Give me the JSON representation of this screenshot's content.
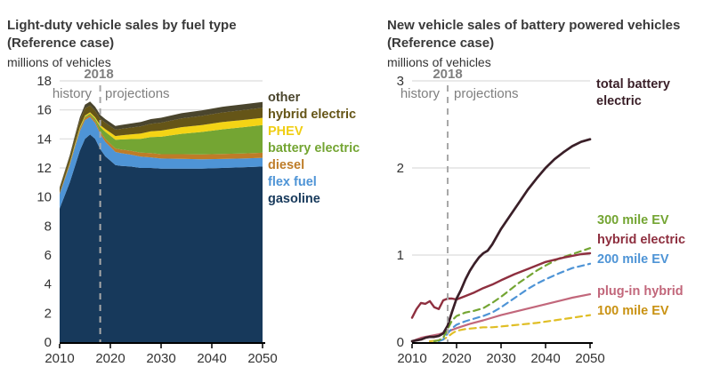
{
  "left_panel": {
    "title_line1": "Light-duty vehicle sales by fuel type",
    "title_line2": "(Reference case)",
    "unit_label": "millions of vehicles",
    "year_marker_label": "2018",
    "history_label": "history",
    "projections_label": "projections",
    "legend": [
      {
        "label": "other",
        "color": "#4A452D"
      },
      {
        "label": "hybrid electric",
        "color": "#655517"
      },
      {
        "label": "PHEV",
        "color": "#F0CE13"
      },
      {
        "label": "battery electric",
        "color": "#74A533"
      },
      {
        "label": "diesel",
        "color": "#BE7C28"
      },
      {
        "label": "flex fuel",
        "color": "#4E94D6"
      },
      {
        "label": "gasoline",
        "color": "#17395B"
      }
    ]
  },
  "right_panel": {
    "title_line1": "New vehicle sales of battery powered vehicles",
    "title_line2": "(Reference case)",
    "unit_label": "millions of vehicles",
    "year_marker_label": "2018",
    "history_label": "history",
    "projections_label": "projections",
    "total_label_line1": "total battery",
    "total_label_line2": "electric",
    "total_label_color": "#3A1F28",
    "legend": [
      {
        "label": "300 mile EV",
        "color": "#74A533"
      },
      {
        "label": "hybrid electric",
        "color": "#8E2F3F"
      },
      {
        "label": "200 mile EV",
        "color": "#4E94D6"
      },
      {
        "label": "plug-in hybrid",
        "color": "#C2677B"
      },
      {
        "label": "100 mile EV",
        "color": "#C99213"
      }
    ]
  },
  "chart_data": [
    {
      "id": "left",
      "type": "stacked-area",
      "title": "Light-duty vehicle sales by fuel type (Reference case)",
      "ylabel": "millions of vehicles",
      "xlim": [
        2010,
        2050
      ],
      "ylim": [
        0,
        18
      ],
      "xticks": [
        2010,
        2020,
        2030,
        2040,
        2050
      ],
      "yticks": [
        0,
        2,
        4,
        6,
        8,
        10,
        12,
        14,
        16,
        18
      ],
      "gridlines": [
        12,
        14,
        16,
        18
      ],
      "grid": true,
      "legend_position": "right",
      "marker_year": 2018,
      "years": [
        2010,
        2011,
        2012,
        2013,
        2014,
        2015,
        2016,
        2017,
        2018,
        2019,
        2020,
        2021,
        2022,
        2024,
        2026,
        2028,
        2030,
        2034,
        2038,
        2042,
        2046,
        2050
      ],
      "series": [
        {
          "name": "gasoline",
          "color": "#17395B",
          "values": [
            9.2,
            10.1,
            11.0,
            12.1,
            13.2,
            14.0,
            14.3,
            14.0,
            13.3,
            12.8,
            12.5,
            12.2,
            12.15,
            12.1,
            12.0,
            12.0,
            11.95,
            11.95,
            11.95,
            12.0,
            12.05,
            12.1
          ]
        },
        {
          "name": "flex fuel",
          "color": "#4E94D6",
          "values": [
            1.0,
            1.1,
            1.2,
            1.3,
            1.35,
            1.3,
            1.2,
            1.1,
            1.05,
            1.0,
            0.95,
            0.9,
            0.88,
            0.82,
            0.78,
            0.73,
            0.7,
            0.68,
            0.65,
            0.62,
            0.6,
            0.6
          ]
        },
        {
          "name": "diesel",
          "color": "#BE7C28",
          "values": [
            0.08,
            0.09,
            0.1,
            0.12,
            0.14,
            0.15,
            0.15,
            0.15,
            0.18,
            0.2,
            0.22,
            0.24,
            0.25,
            0.27,
            0.28,
            0.3,
            0.3,
            0.32,
            0.33,
            0.34,
            0.35,
            0.35
          ]
        },
        {
          "name": "battery electric",
          "color": "#74A533",
          "values": [
            0.0,
            0.01,
            0.02,
            0.04,
            0.06,
            0.08,
            0.1,
            0.15,
            0.3,
            0.5,
            0.55,
            0.6,
            0.68,
            0.8,
            0.95,
            1.1,
            1.2,
            1.4,
            1.55,
            1.7,
            1.8,
            1.9
          ]
        },
        {
          "name": "PHEV",
          "color": "#F4D415",
          "values": [
            0.0,
            0.02,
            0.04,
            0.06,
            0.07,
            0.08,
            0.08,
            0.09,
            0.12,
            0.18,
            0.22,
            0.26,
            0.28,
            0.32,
            0.36,
            0.4,
            0.42,
            0.46,
            0.48,
            0.5,
            0.5,
            0.5
          ]
        },
        {
          "name": "hybrid electric",
          "color": "#655517",
          "values": [
            0.3,
            0.35,
            0.4,
            0.45,
            0.48,
            0.5,
            0.47,
            0.45,
            0.45,
            0.44,
            0.44,
            0.44,
            0.45,
            0.47,
            0.5,
            0.52,
            0.55,
            0.6,
            0.63,
            0.66,
            0.68,
            0.7
          ]
        },
        {
          "name": "other",
          "color": "#4A452D",
          "values": [
            0.08,
            0.1,
            0.12,
            0.15,
            0.2,
            0.25,
            0.28,
            0.28,
            0.26,
            0.25,
            0.25,
            0.25,
            0.26,
            0.28,
            0.3,
            0.32,
            0.34,
            0.36,
            0.38,
            0.39,
            0.4,
            0.4
          ]
        }
      ]
    },
    {
      "id": "right",
      "type": "line",
      "title": "New vehicle sales of battery powered vehicles (Reference case)",
      "ylabel": "millions of vehicles",
      "xlim": [
        2010,
        2050
      ],
      "ylim": [
        0,
        3
      ],
      "xticks": [
        2010,
        2020,
        2030,
        2040,
        2050
      ],
      "yticks": [
        0,
        1,
        2,
        3
      ],
      "gridlines": [
        1,
        2,
        3
      ],
      "grid": true,
      "legend_position": "right",
      "marker_year": 2018,
      "series": [
        {
          "name": "100 mile EV",
          "color": "#E0BE25",
          "dash": "7,5",
          "width": 2.2,
          "x": [
            2014,
            2016,
            2017,
            2018,
            2019,
            2020,
            2022,
            2024,
            2026,
            2028,
            2030,
            2034,
            2038,
            2042,
            2046,
            2050
          ],
          "y": [
            0.01,
            0.02,
            0.03,
            0.06,
            0.1,
            0.13,
            0.15,
            0.16,
            0.17,
            0.17,
            0.18,
            0.2,
            0.22,
            0.25,
            0.28,
            0.31
          ]
        },
        {
          "name": "plug-in hybrid",
          "color": "#C2677B",
          "dash": "",
          "width": 2.2,
          "x": [
            2010,
            2012,
            2014,
            2016,
            2018,
            2020,
            2023,
            2026,
            2030,
            2034,
            2038,
            2042,
            2046,
            2050
          ],
          "y": [
            0.01,
            0.05,
            0.07,
            0.09,
            0.12,
            0.16,
            0.21,
            0.25,
            0.31,
            0.36,
            0.41,
            0.46,
            0.51,
            0.55
          ]
        },
        {
          "name": "200 mile EV",
          "color": "#4E94D6",
          "dash": "7,5",
          "width": 2.2,
          "x": [
            2016,
            2017,
            2018,
            2019,
            2020,
            2021,
            2022,
            2024,
            2026,
            2028,
            2030,
            2032,
            2034,
            2036,
            2038,
            2040,
            2043,
            2046,
            2050
          ],
          "y": [
            0.01,
            0.03,
            0.1,
            0.16,
            0.2,
            0.22,
            0.24,
            0.27,
            0.3,
            0.34,
            0.4,
            0.47,
            0.54,
            0.61,
            0.67,
            0.72,
            0.79,
            0.85,
            0.9
          ]
        },
        {
          "name": "300 mile EV",
          "color": "#74A533",
          "dash": "7,5",
          "width": 2.2,
          "x": [
            2015,
            2016,
            2017,
            2018,
            2019,
            2020,
            2021,
            2022,
            2024,
            2026,
            2028,
            2030,
            2032,
            2034,
            2036,
            2038,
            2040,
            2043,
            2046,
            2050
          ],
          "y": [
            0.01,
            0.02,
            0.05,
            0.15,
            0.25,
            0.3,
            0.32,
            0.34,
            0.36,
            0.39,
            0.45,
            0.52,
            0.6,
            0.68,
            0.75,
            0.82,
            0.88,
            0.96,
            1.01,
            1.08
          ]
        },
        {
          "name": "hybrid electric",
          "color": "#8E2F3F",
          "dash": "",
          "width": 2.4,
          "x": [
            2010,
            2011,
            2012,
            2013,
            2014,
            2015,
            2016,
            2017,
            2018,
            2019,
            2020,
            2022,
            2024,
            2026,
            2028,
            2030,
            2033,
            2036,
            2040,
            2044,
            2048,
            2050
          ],
          "y": [
            0.28,
            0.38,
            0.45,
            0.44,
            0.47,
            0.4,
            0.38,
            0.48,
            0.5,
            0.5,
            0.49,
            0.53,
            0.57,
            0.62,
            0.66,
            0.71,
            0.78,
            0.84,
            0.92,
            0.97,
            1.01,
            1.02
          ]
        },
        {
          "name": "total battery electric",
          "color": "#3A1F28",
          "dash": "",
          "width": 2.7,
          "x": [
            2010,
            2011,
            2012,
            2013,
            2014,
            2015,
            2016,
            2017,
            2018,
            2019,
            2020,
            2021,
            2022,
            2023,
            2024,
            2025,
            2026,
            2027,
            2028,
            2030,
            2032,
            2034,
            2036,
            2038,
            2040,
            2042,
            2044,
            2046,
            2048,
            2050
          ],
          "y": [
            0.01,
            0.02,
            0.03,
            0.05,
            0.06,
            0.06,
            0.07,
            0.1,
            0.19,
            0.35,
            0.5,
            0.6,
            0.72,
            0.82,
            0.9,
            0.97,
            1.02,
            1.05,
            1.12,
            1.3,
            1.45,
            1.6,
            1.75,
            1.88,
            2.0,
            2.1,
            2.18,
            2.25,
            2.3,
            2.33
          ]
        }
      ]
    }
  ]
}
